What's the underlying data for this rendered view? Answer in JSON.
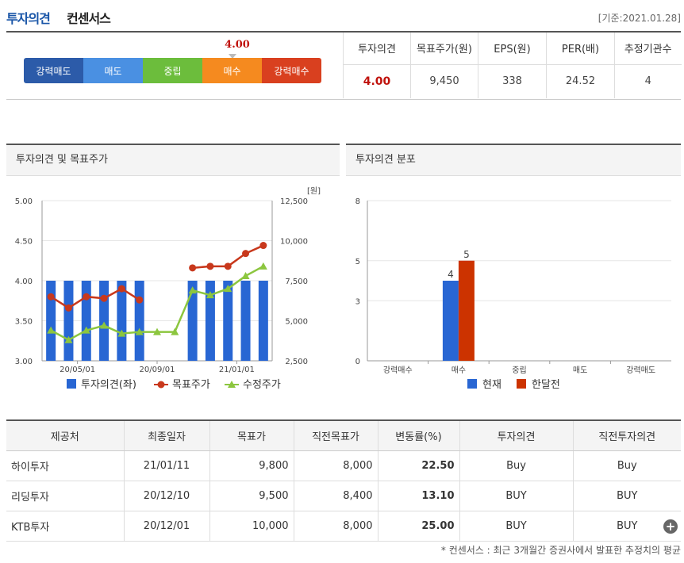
{
  "header": {
    "title_blue": "투자의견",
    "title_black": "컨센서스",
    "date": "[기준:2021.01.28]"
  },
  "scale": {
    "marker_value": "4.00",
    "marker_score": 4.0,
    "segments": [
      {
        "label": "강력매도",
        "color": "#2c5ba9"
      },
      {
        "label": "매도",
        "color": "#4a90e2"
      },
      {
        "label": "중립",
        "color": "#6cbd3c"
      },
      {
        "label": "매수",
        "color": "#f58a1f"
      },
      {
        "label": "강력매수",
        "color": "#d9401f"
      }
    ]
  },
  "summary": {
    "headers": [
      "투자의견",
      "목표주가(원)",
      "EPS(원)",
      "PER(배)",
      "추정기관수"
    ],
    "values": [
      "4.00",
      "9,450",
      "338",
      "24.52",
      "4"
    ]
  },
  "left_panel": {
    "title": "투자의견 및 목표주가"
  },
  "right_panel": {
    "title": "투자의견 분포"
  },
  "chart_data": [
    {
      "type": "bar+line",
      "title": "투자의견 및 목표주가",
      "x_ticks": [
        "20/05/01",
        "20/09/01",
        "21/01/01"
      ],
      "y_left_ticks": [
        "5.00",
        "4.50",
        "4.00",
        "3.50",
        "3.00"
      ],
      "y_left_range": [
        3.0,
        5.0
      ],
      "y_right_ticks": [
        "12,500",
        "10,000",
        "7,500",
        "5,000",
        "2,500"
      ],
      "y_right_range": [
        2500,
        12500
      ],
      "y_right_unit": "[원]",
      "series": [
        {
          "name": "투자의견(좌)",
          "type": "bar",
          "color": "#2866d3",
          "values": [
            4,
            4,
            4,
            4,
            4,
            4,
            null,
            null,
            4,
            4,
            4,
            4,
            4
          ]
        },
        {
          "name": "목표주가",
          "type": "line",
          "color": "#c8381c",
          "values": [
            6500,
            5800,
            6500,
            6400,
            7000,
            6300,
            null,
            null,
            8300,
            8400,
            8400,
            9200,
            9700
          ]
        },
        {
          "name": "수정주가",
          "type": "line",
          "color": "#8cc63f",
          "values": [
            4400,
            3800,
            4400,
            4700,
            4200,
            4300,
            4300,
            4300,
            6900,
            6600,
            7000,
            7800,
            8400
          ]
        }
      ]
    },
    {
      "type": "bar",
      "title": "투자의견 분포",
      "categories": [
        "강력매수",
        "매수",
        "중립",
        "매도",
        "강력매도"
      ],
      "y_ticks": [
        "8",
        "5",
        "3",
        "0"
      ],
      "ylim": [
        0,
        8
      ],
      "series": [
        {
          "name": "현재",
          "color": "#2866d3",
          "values": [
            0,
            4,
            0,
            0,
            0
          ]
        },
        {
          "name": "한달전",
          "color": "#cc3300",
          "values": [
            0,
            5,
            0,
            0,
            0
          ]
        }
      ]
    }
  ],
  "table": {
    "headers": [
      "제공처",
      "최종일자",
      "목표가",
      "직전목표가",
      "변동률(%)",
      "투자의견",
      "직전투자의견"
    ],
    "rows": [
      [
        "하이투자",
        "21/01/11",
        "9,800",
        "8,000",
        "22.50",
        "Buy",
        "Buy"
      ],
      [
        "리딩투자",
        "20/12/10",
        "9,500",
        "8,400",
        "13.10",
        "BUY",
        "BUY"
      ],
      [
        "KTB투자",
        "20/12/01",
        "10,000",
        "8,000",
        "25.00",
        "BUY",
        "BUY"
      ]
    ]
  },
  "footnote": "* 컨센서스 : 최근 3개월간 증권사에서 발표한 추정치의 평균",
  "more_button": "+"
}
